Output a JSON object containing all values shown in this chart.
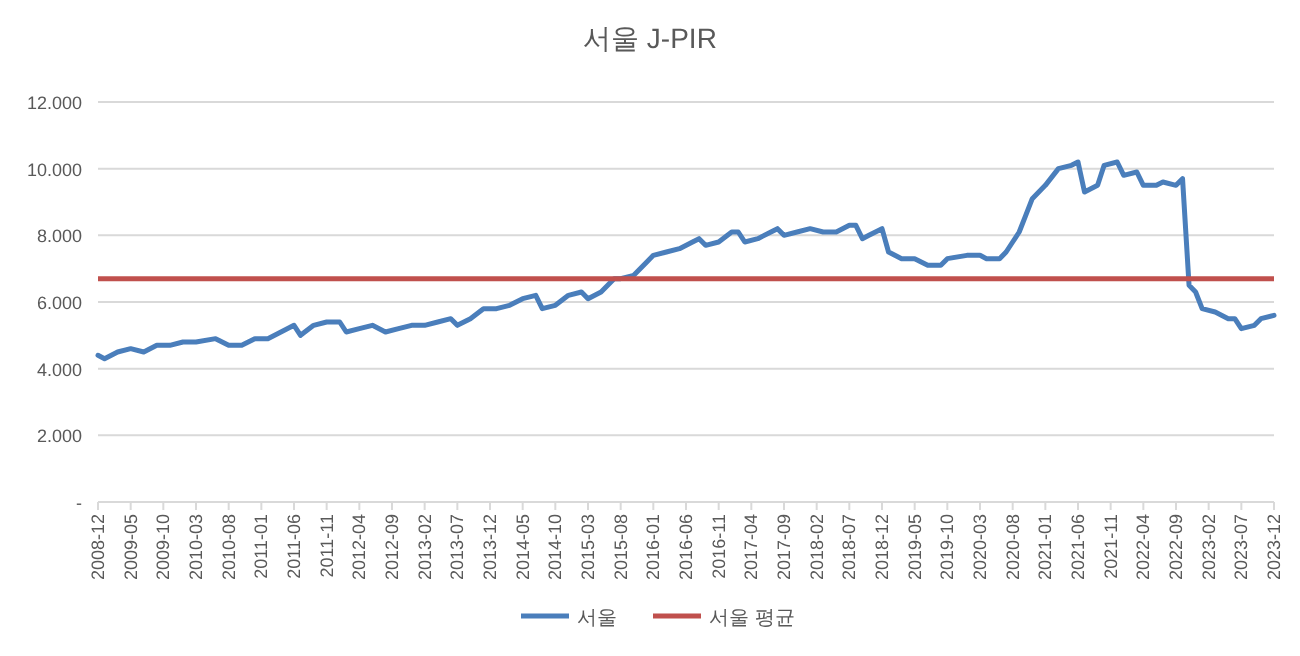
{
  "chart_data": {
    "type": "line",
    "title": "서울 J-PIR",
    "grid": "y",
    "legend": "bottom",
    "line_style": "solid",
    "marker": "none",
    "ylim": [
      0,
      12
    ],
    "yticks": [
      {
        "value": 0,
        "label": "-"
      },
      {
        "value": 2,
        "label": "2.000"
      },
      {
        "value": 4,
        "label": "4.000"
      },
      {
        "value": 6,
        "label": "6.000"
      },
      {
        "value": 8,
        "label": "8.000"
      },
      {
        "value": 10,
        "label": "10.000"
      },
      {
        "value": 12,
        "label": "12.000"
      }
    ],
    "xlim": [
      "2008-12",
      "2023-12"
    ],
    "xticks": [
      "2008-12",
      "2009-05",
      "2009-10",
      "2010-03",
      "2010-08",
      "2011-01",
      "2011-06",
      "2011-11",
      "2012-04",
      "2012-09",
      "2013-02",
      "2013-07",
      "2013-12",
      "2014-05",
      "2014-10",
      "2015-03",
      "2015-08",
      "2016-01",
      "2016-06",
      "2016-11",
      "2017-04",
      "2017-09",
      "2018-02",
      "2018-07",
      "2018-12",
      "2019-05",
      "2019-10",
      "2020-03",
      "2020-08",
      "2021-01",
      "2021-06",
      "2021-11",
      "2022-04",
      "2022-09",
      "2023-02",
      "2023-07",
      "2023-12"
    ],
    "series": [
      {
        "name": "서울",
        "color": "#4a7ebb",
        "x": [
          "2008-12",
          "2009-01",
          "2009-03",
          "2009-05",
          "2009-07",
          "2009-09",
          "2009-11",
          "2010-01",
          "2010-03",
          "2010-06",
          "2010-08",
          "2010-10",
          "2010-12",
          "2011-02",
          "2011-04",
          "2011-06",
          "2011-07",
          "2011-09",
          "2011-11",
          "2012-01",
          "2012-02",
          "2012-04",
          "2012-06",
          "2012-08",
          "2012-10",
          "2012-12",
          "2013-02",
          "2013-04",
          "2013-06",
          "2013-07",
          "2013-09",
          "2013-11",
          "2014-01",
          "2014-03",
          "2014-05",
          "2014-07",
          "2014-08",
          "2014-10",
          "2014-12",
          "2015-02",
          "2015-03",
          "2015-05",
          "2015-07",
          "2015-08",
          "2015-10",
          "2015-12",
          "2016-01",
          "2016-03",
          "2016-05",
          "2016-07",
          "2016-08",
          "2016-09",
          "2016-11",
          "2017-01",
          "2017-02",
          "2017-03",
          "2017-05",
          "2017-07",
          "2017-08",
          "2017-09",
          "2017-11",
          "2018-01",
          "2018-03",
          "2018-05",
          "2018-07",
          "2018-08",
          "2018-09",
          "2018-10",
          "2018-12",
          "2019-01",
          "2019-03",
          "2019-05",
          "2019-07",
          "2019-09",
          "2019-10",
          "2020-01",
          "2020-03",
          "2020-04",
          "2020-06",
          "2020-07",
          "2020-08",
          "2020-09",
          "2020-10",
          "2020-11",
          "2020-12",
          "2021-01",
          "2021-03",
          "2021-05",
          "2021-06",
          "2021-07",
          "2021-09",
          "2021-10",
          "2021-12",
          "2022-01",
          "2022-03",
          "2022-04",
          "2022-06",
          "2022-07",
          "2022-09",
          "2022-10",
          "2022-11",
          "2022-12",
          "2023-01",
          "2023-03",
          "2023-05",
          "2023-06",
          "2023-07",
          "2023-09",
          "2023-10",
          "2023-12"
        ],
        "values": [
          4.4,
          4.3,
          4.5,
          4.6,
          4.5,
          4.7,
          4.7,
          4.8,
          4.8,
          4.9,
          4.7,
          4.7,
          4.9,
          4.9,
          5.1,
          5.3,
          5.0,
          5.3,
          5.4,
          5.4,
          5.1,
          5.2,
          5.3,
          5.1,
          5.2,
          5.3,
          5.3,
          5.4,
          5.5,
          5.3,
          5.5,
          5.8,
          5.8,
          5.9,
          6.1,
          6.2,
          5.8,
          5.9,
          6.2,
          6.3,
          6.1,
          6.3,
          6.7,
          6.7,
          6.8,
          7.2,
          7.4,
          7.5,
          7.6,
          7.8,
          7.9,
          7.7,
          7.8,
          8.1,
          8.1,
          7.8,
          7.9,
          8.1,
          8.2,
          8.0,
          8.1,
          8.2,
          8.1,
          8.1,
          8.3,
          8.3,
          7.9,
          8.0,
          8.2,
          7.5,
          7.3,
          7.3,
          7.1,
          7.1,
          7.3,
          7.4,
          7.4,
          7.3,
          7.3,
          7.5,
          7.8,
          8.1,
          8.6,
          9.1,
          9.3,
          9.5,
          10.0,
          10.1,
          10.2,
          9.3,
          9.5,
          10.1,
          10.2,
          9.8,
          9.9,
          9.5,
          9.5,
          9.6,
          9.5,
          9.7,
          6.5,
          6.3,
          5.8,
          5.7,
          5.5,
          5.5,
          5.2,
          5.3,
          5.5,
          5.6
        ]
      }
    ],
    "ref_lines": [
      {
        "axis": "y",
        "value": 6.7,
        "label": "서울 평균",
        "color": "#c0504d"
      }
    ]
  }
}
